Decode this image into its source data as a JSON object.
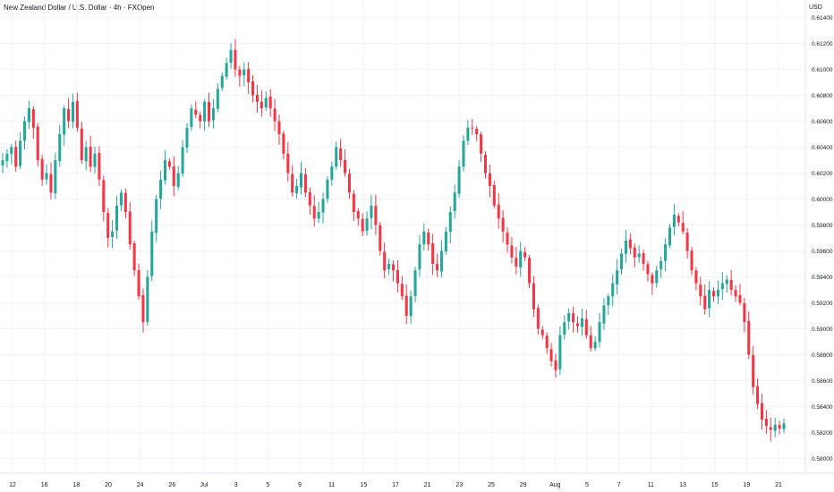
{
  "header": {
    "title": "New Zealand Dollar / U.S. Dollar · 4h · FXOpen",
    "currency": "USD"
  },
  "chart_data": {
    "type": "candlestick",
    "title": "New Zealand Dollar / U.S. Dollar · 4h · FXOpen",
    "ylabel": "USD",
    "ylim": [
      0.5792,
      0.6148
    ],
    "y_ticks": [
      "0.61400",
      "0.61200",
      "0.61000",
      "0.60800",
      "0.60600",
      "0.60400",
      "0.60200",
      "0.60000",
      "0.59800",
      "0.59600",
      "0.59400",
      "0.59200",
      "0.59000",
      "0.58800",
      "0.58600",
      "0.58400",
      "0.58200",
      "0.58000"
    ],
    "x_ticks": [
      "12",
      "16",
      "18",
      "20",
      "24",
      "26",
      "Jul",
      "3",
      "5",
      "9",
      "11",
      "15",
      "17",
      "21",
      "23",
      "25",
      "29",
      "Aug",
      "5",
      "7",
      "11",
      "13",
      "15",
      "19",
      "21"
    ],
    "grid": true,
    "colors": {
      "up": "#26a69a",
      "down": "#f23645"
    },
    "close_series": [
      0.603,
      0.6035,
      0.604,
      0.6025,
      0.6045,
      0.606,
      0.607,
      0.6055,
      0.603,
      0.6015,
      0.602,
      0.6005,
      0.603,
      0.605,
      0.607,
      0.606,
      0.6075,
      0.6055,
      0.603,
      0.604,
      0.6025,
      0.6035,
      0.6015,
      0.599,
      0.597,
      0.5975,
      0.5995,
      0.6005,
      0.599,
      0.5965,
      0.5945,
      0.5925,
      0.5905,
      0.594,
      0.5975,
      0.6,
      0.6015,
      0.603,
      0.6025,
      0.601,
      0.602,
      0.604,
      0.6055,
      0.607,
      0.6065,
      0.606,
      0.6075,
      0.606,
      0.607,
      0.6085,
      0.6095,
      0.6105,
      0.6115,
      0.61,
      0.6095,
      0.61,
      0.609,
      0.608,
      0.6075,
      0.607,
      0.6078,
      0.607,
      0.606,
      0.605,
      0.6035,
      0.602,
      0.6005,
      0.601,
      0.602,
      0.6005,
      0.5995,
      0.5985,
      0.599,
      0.6,
      0.6015,
      0.6025,
      0.604,
      0.603,
      0.602,
      0.6005,
      0.599,
      0.5985,
      0.5975,
      0.5985,
      0.5995,
      0.598,
      0.596,
      0.5945,
      0.595,
      0.5945,
      0.5935,
      0.5925,
      0.591,
      0.5925,
      0.5945,
      0.5965,
      0.5975,
      0.5965,
      0.595,
      0.5945,
      0.596,
      0.5975,
      0.599,
      0.6005,
      0.6025,
      0.6045,
      0.6055,
      0.6055,
      0.605,
      0.6035,
      0.602,
      0.601,
      0.5995,
      0.5985,
      0.5975,
      0.5965,
      0.5955,
      0.5948,
      0.596,
      0.5955,
      0.5935,
      0.5915,
      0.59,
      0.5895,
      0.5885,
      0.5875,
      0.5868,
      0.5895,
      0.5905,
      0.5912,
      0.5905,
      0.5902,
      0.5908,
      0.5895,
      0.5885,
      0.589,
      0.5905,
      0.5918,
      0.5925,
      0.5935,
      0.5945,
      0.5958,
      0.5968,
      0.5962,
      0.5955,
      0.5958,
      0.595,
      0.5942,
      0.5935,
      0.5945,
      0.5952,
      0.5965,
      0.5978,
      0.5988,
      0.5982,
      0.5975,
      0.596,
      0.5945,
      0.5935,
      0.5925,
      0.5915,
      0.593,
      0.5925,
      0.593,
      0.5935,
      0.5938,
      0.593,
      0.5925,
      0.592,
      0.5905,
      0.588,
      0.5855,
      0.5842,
      0.583,
      0.5825,
      0.5822,
      0.5826,
      0.5823,
      0.5827
    ]
  }
}
